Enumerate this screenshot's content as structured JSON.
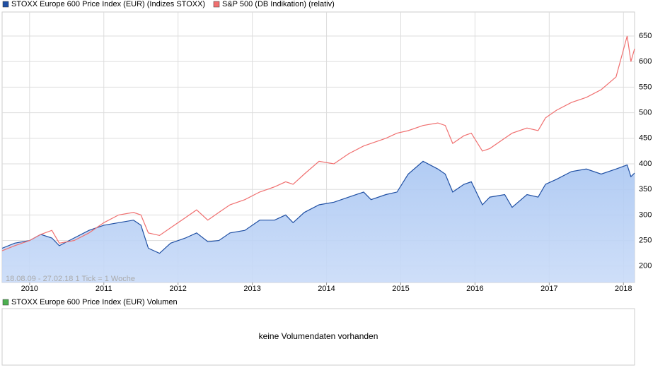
{
  "chart_data": [
    {
      "type": "line",
      "annotation": "18.08.09 - 27.02.18   1 Tick = 1 Woche",
      "x": [
        2009.63,
        2009.8,
        2010.0,
        2010.15,
        2010.3,
        2010.4,
        2010.6,
        2010.8,
        2011.0,
        2011.2,
        2011.4,
        2011.5,
        2011.6,
        2011.75,
        2011.9,
        2012.1,
        2012.25,
        2012.4,
        2012.55,
        2012.7,
        2012.9,
        2013.1,
        2013.3,
        2013.45,
        2013.55,
        2013.7,
        2013.9,
        2014.1,
        2014.3,
        2014.5,
        2014.6,
        2014.8,
        2014.95,
        2015.1,
        2015.3,
        2015.5,
        2015.6,
        2015.7,
        2015.85,
        2015.95,
        2016.1,
        2016.2,
        2016.4,
        2016.5,
        2016.7,
        2016.85,
        2016.95,
        2017.1,
        2017.3,
        2017.5,
        2017.7,
        2017.9,
        2018.05,
        2018.1,
        2018.15
      ],
      "series": [
        {
          "name": "STOXX Europe 600 Price Index (EUR) (Indizes STOXX)",
          "color": "#1f4fa3",
          "values": [
            235,
            245,
            250,
            262,
            255,
            240,
            255,
            270,
            280,
            285,
            290,
            280,
            235,
            225,
            245,
            255,
            265,
            248,
            250,
            265,
            270,
            290,
            290,
            300,
            285,
            305,
            320,
            325,
            335,
            345,
            330,
            340,
            345,
            380,
            405,
            390,
            380,
            345,
            360,
            365,
            320,
            335,
            340,
            315,
            340,
            335,
            360,
            370,
            385,
            390,
            380,
            390,
            398,
            375,
            382
          ]
        },
        {
          "name": "S&P 500 (DB Indikation) (relativ)",
          "color": "#f07070",
          "values": [
            230,
            240,
            250,
            262,
            270,
            245,
            250,
            265,
            285,
            300,
            305,
            300,
            265,
            260,
            275,
            295,
            310,
            290,
            305,
            320,
            330,
            345,
            355,
            365,
            360,
            380,
            405,
            400,
            420,
            435,
            440,
            450,
            460,
            465,
            475,
            480,
            475,
            440,
            455,
            460,
            425,
            430,
            450,
            460,
            470,
            465,
            490,
            505,
            520,
            530,
            545,
            570,
            650,
            600,
            625
          ]
        }
      ],
      "xlim": [
        2009.63,
        2018.15
      ],
      "xticks": [
        2010,
        2011,
        2012,
        2013,
        2014,
        2015,
        2016,
        2017,
        2018
      ],
      "ylim": [
        168,
        697
      ],
      "yticks": [
        200,
        250,
        300,
        350,
        400,
        450,
        500,
        550,
        600,
        650
      ],
      "grid": true
    },
    {
      "type": "volume",
      "series": [
        {
          "name": "STOXX Europe 600 Price Index (EUR) Volumen",
          "color": "#4caf50"
        }
      ],
      "message": "keine Volumendaten vorhanden"
    }
  ]
}
